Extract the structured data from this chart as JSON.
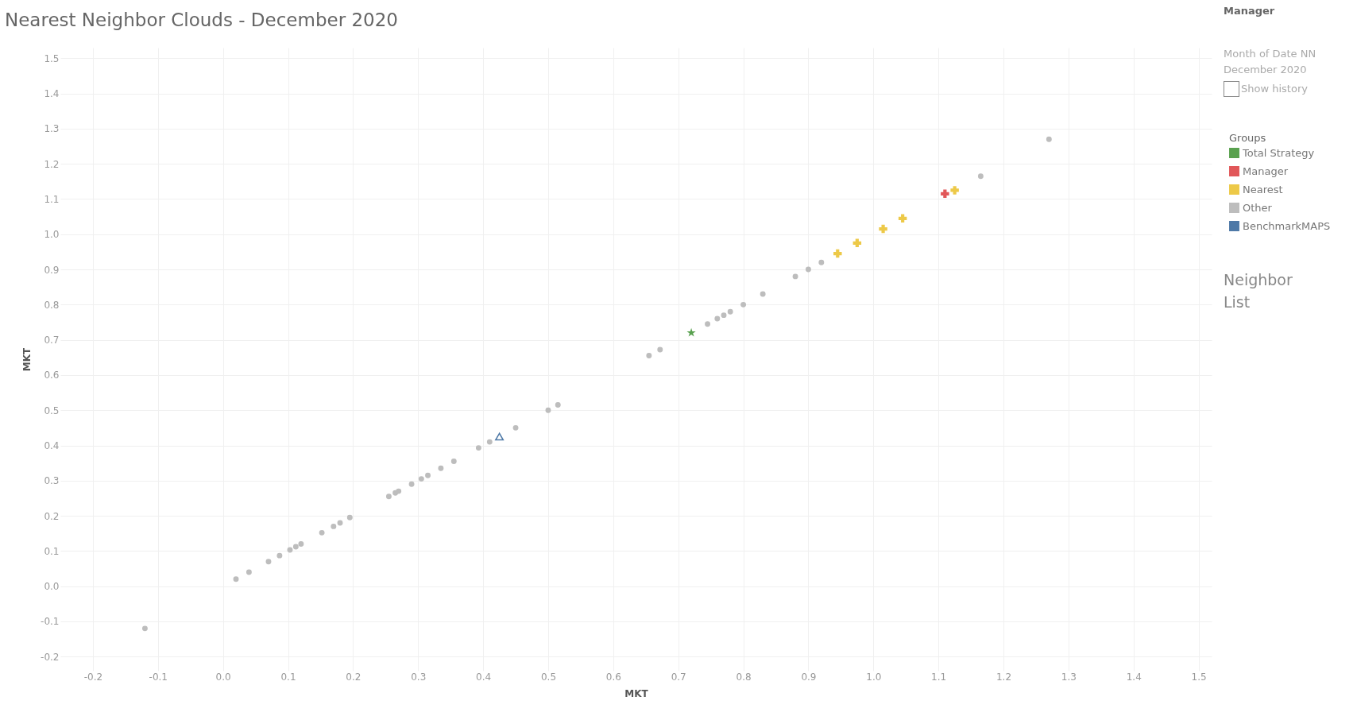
{
  "chart_data": {
    "type": "scatter",
    "title": "Nearest Neighbor Clouds - December 2020",
    "xlabel": "MKT",
    "ylabel": "MKT",
    "legend_title": "Groups",
    "xlim": [
      -0.25,
      1.52
    ],
    "ylim": [
      -0.24,
      1.53
    ],
    "xticks": [
      -0.2,
      -0.1,
      {
        "value": 0,
        "label": "0.0"
      },
      0.1,
      0.2,
      0.3,
      0.4,
      0.5,
      0.6,
      0.7,
      0.8,
      0.9,
      {
        "value": 1,
        "label": "1.0"
      },
      1.1,
      1.2,
      1.3,
      1.4,
      1.5
    ],
    "yticks": [
      -0.2,
      -0.1,
      {
        "value": 0,
        "label": "0.0"
      },
      0.1,
      0.2,
      0.3,
      0.4,
      0.5,
      0.6,
      0.7,
      0.8,
      0.9,
      {
        "value": 1,
        "label": "1.0"
      },
      1.1,
      1.2,
      1.3,
      1.4,
      1.5
    ],
    "grid": true,
    "legend": "top right",
    "series": [
      {
        "name": "Total Strategy",
        "color": "#59a14f",
        "marker": "star",
        "x": [
          0.72
        ],
        "values": [
          0.72
        ]
      },
      {
        "name": "Manager",
        "color": "#e15759",
        "marker": "cross",
        "x": [
          1.11
        ],
        "values": [
          1.115
        ]
      },
      {
        "name": "Nearest",
        "color": "#edc948",
        "marker": "cross",
        "x": [
          0.945,
          0.975,
          1.015,
          1.045,
          1.125
        ],
        "values": [
          0.945,
          0.975,
          1.015,
          1.045,
          1.125
        ]
      },
      {
        "name": "Other",
        "color": "#bdbdbd",
        "marker": "circle",
        "x": [
          -0.12,
          0.02,
          0.04,
          0.07,
          0.087,
          0.103,
          0.112,
          0.12,
          0.152,
          0.17,
          0.18,
          0.195,
          0.255,
          0.265,
          0.27,
          0.29,
          0.305,
          0.315,
          0.335,
          0.355,
          0.393,
          0.41,
          0.45,
          0.5,
          0.515,
          0.655,
          0.672,
          0.745,
          0.76,
          0.77,
          0.78,
          0.8,
          0.83,
          0.88,
          0.9,
          0.92,
          1.165,
          1.27
        ],
        "values": [
          -0.12,
          0.02,
          0.04,
          0.07,
          0.087,
          0.103,
          0.112,
          0.12,
          0.152,
          0.17,
          0.18,
          0.195,
          0.255,
          0.265,
          0.27,
          0.29,
          0.305,
          0.315,
          0.335,
          0.355,
          0.393,
          0.41,
          0.45,
          0.5,
          0.515,
          0.655,
          0.672,
          0.745,
          0.76,
          0.77,
          0.78,
          0.8,
          0.83,
          0.88,
          0.9,
          0.92,
          1.165,
          1.27
        ]
      },
      {
        "name": "BenchmarkMAPS",
        "color": "#4e79a7",
        "marker": "triangle",
        "x": [
          0.425
        ],
        "values": [
          0.425
        ]
      }
    ],
    "annotations": [
      "Manager",
      "Month of Date NN",
      "December 2020",
      "Show history",
      "Neighbor List"
    ]
  }
}
